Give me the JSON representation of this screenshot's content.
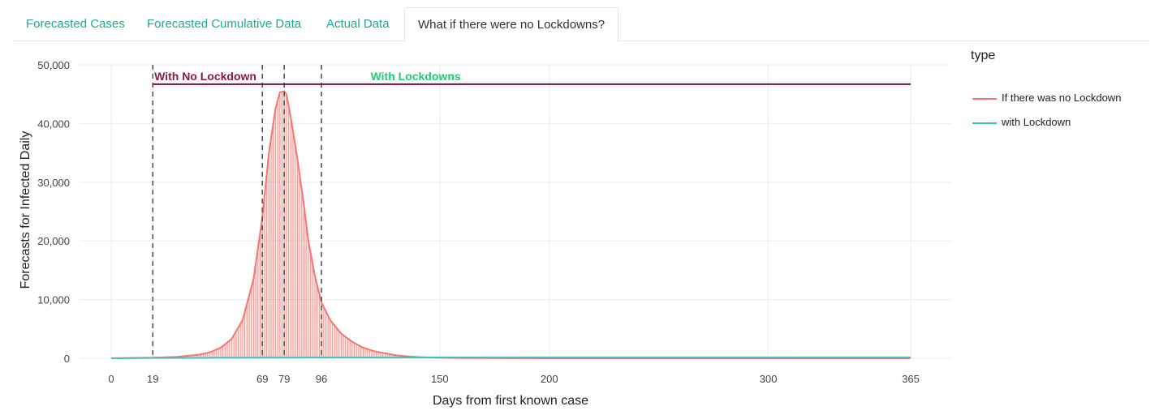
{
  "tabs": [
    {
      "label": "Forecasted Cases",
      "active": false
    },
    {
      "label": "Forecasted Cumulative Data",
      "active": false
    },
    {
      "label": "Actual Data",
      "active": false
    },
    {
      "label": "What if there were no Lockdowns?",
      "active": true
    }
  ],
  "colors": {
    "no_lockdown": "#f8766d",
    "with_lockdown": "#3ec1c1",
    "annotation_line": "#7a0f45",
    "no_lockdown_label": "#8b1a4a",
    "lockdowns_label": "#1fcf6d",
    "tab_text": "#17b08f"
  },
  "legend": {
    "title": "type",
    "items": [
      "If there was no Lockdown",
      "with Lockdown"
    ]
  },
  "chart_data": {
    "type": "area",
    "xlabel": "Days from first known case",
    "ylabel": "Forecasts for Infected Daily",
    "xlim": [
      0,
      365
    ],
    "ylim": [
      0,
      50000
    ],
    "x_ticks": [
      0,
      19,
      69,
      79,
      96,
      150,
      200,
      300,
      365
    ],
    "y_ticks": [
      0,
      10000,
      20000,
      30000,
      40000,
      50000
    ],
    "y_tick_labels": [
      "0",
      "10,000",
      "20,000",
      "30,000",
      "40,000",
      "50,000"
    ],
    "vertical_reference_lines": [
      19,
      69,
      79,
      96
    ],
    "horizontal_reference_line": {
      "y": 46700,
      "x_start": 19,
      "x_end": 365
    },
    "annotations": [
      {
        "text": "With No Lockdown",
        "x": 43,
        "y": 47400
      },
      {
        "text": "With Lockdowns",
        "x": 139,
        "y": 47400
      }
    ],
    "grid": true,
    "legend_position": "right",
    "series": [
      {
        "name": "If there was no Lockdown",
        "x": [
          0,
          19,
          30,
          40,
          45,
          50,
          55,
          60,
          65,
          69,
          72,
          75,
          77,
          79,
          80,
          82,
          85,
          88,
          90,
          93,
          96,
          100,
          105,
          110,
          115,
          120,
          130,
          140,
          150,
          160,
          200,
          250,
          300,
          365
        ],
        "values": [
          0,
          100,
          250,
          600,
          1000,
          1800,
          3300,
          6500,
          13500,
          24000,
          35000,
          42500,
          45300,
          45500,
          45000,
          41000,
          34000,
          26000,
          20000,
          14000,
          9500,
          6500,
          4200,
          2800,
          1800,
          1200,
          500,
          200,
          80,
          30,
          5,
          2,
          1,
          0
        ]
      },
      {
        "name": "with Lockdown",
        "x": [
          0,
          19,
          50,
          69,
          79,
          96,
          150,
          200,
          300,
          365
        ],
        "values": [
          0,
          50,
          80,
          100,
          110,
          120,
          130,
          140,
          145,
          150
        ]
      }
    ]
  }
}
